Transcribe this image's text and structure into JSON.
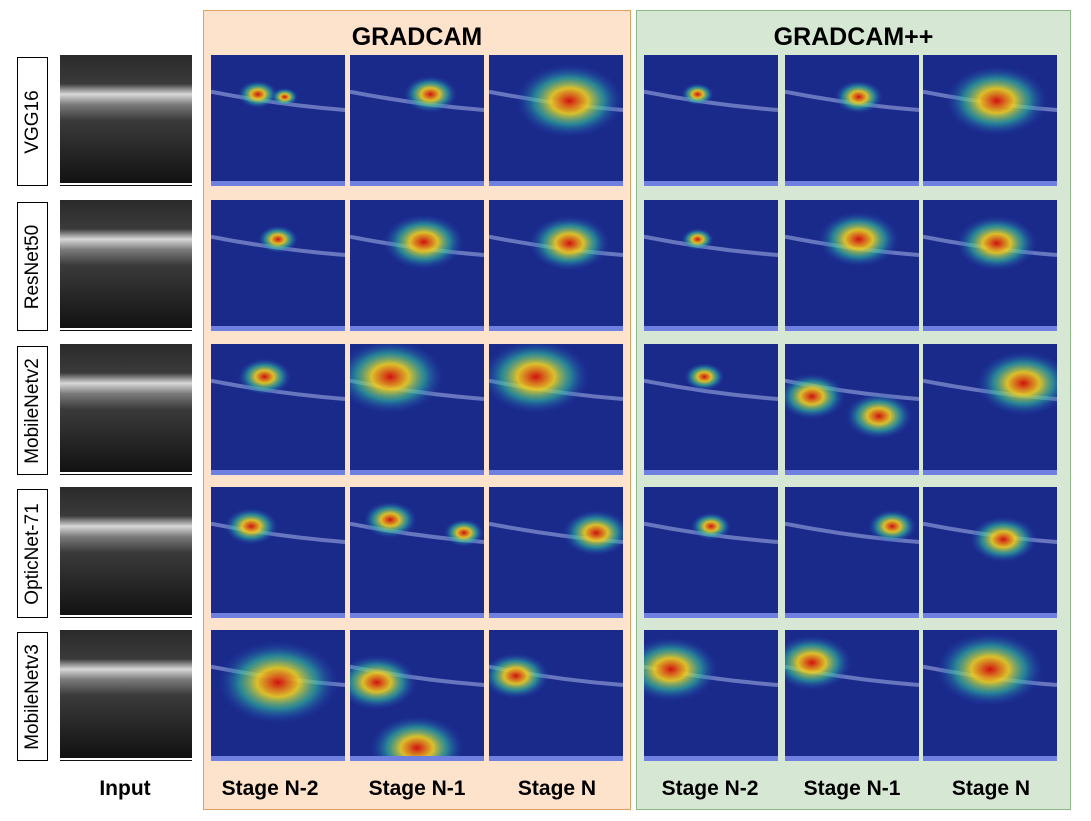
{
  "colors": {
    "gradcam_panel_bg": "#fde3cc",
    "gradcam_panel_border": "#e0a060",
    "gradcampp_panel_bg": "#d6e8d3",
    "gradcampp_panel_border": "#8fb889",
    "heatmap_low": "#1a2a8a",
    "heatmap_high": "#d01010"
  },
  "panels": {
    "gradcam": {
      "title": "GRADCAM"
    },
    "gradcampp": {
      "title": "GRADCAM++"
    }
  },
  "column_labels": {
    "input": "Input",
    "gc_stage_n2": "Stage N-2",
    "gc_stage_n1": "Stage N-1",
    "gc_stage_n": "Stage N",
    "pp_stage_n2": "Stage N-2",
    "pp_stage_n1": "Stage N-1",
    "pp_stage_n": "Stage N"
  },
  "rows": [
    {
      "model": "VGG16"
    },
    {
      "model": "ResNet50"
    },
    {
      "model": "MobileNetv2"
    },
    {
      "model": "OpticNet-71"
    },
    {
      "model": "MobileNetv3"
    }
  ]
}
